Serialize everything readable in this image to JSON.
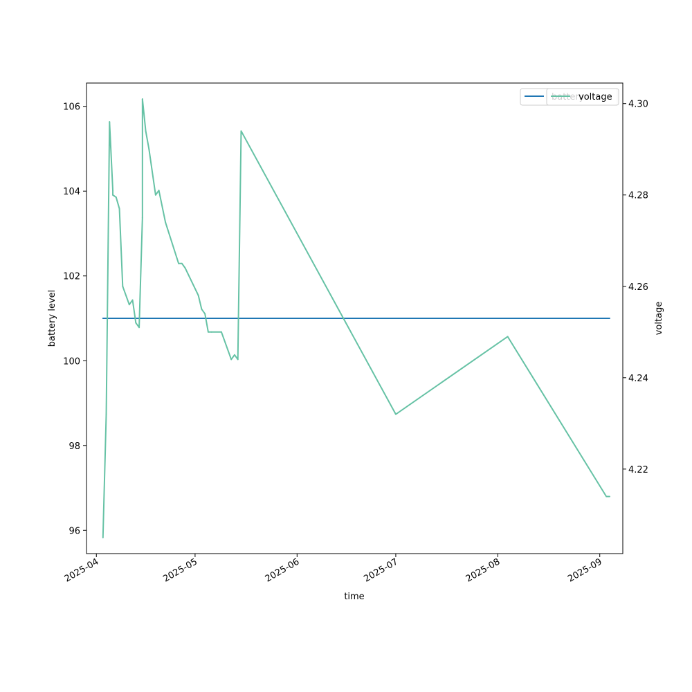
{
  "chart_data": {
    "type": "line",
    "xlabel": "time",
    "ylabel_left": "battery level",
    "ylabel_right": "voltage",
    "x_ticks": [
      "2025-04",
      "2025-05",
      "2025-06",
      "2025-07",
      "2025-08",
      "2025-09"
    ],
    "y_left_ticks": [
      "96",
      "98",
      "100",
      "102",
      "104",
      "106"
    ],
    "y_right_ticks": [
      "4.22",
      "4.24",
      "4.26",
      "4.28",
      "4.30"
    ],
    "xlim": [
      "2025-03-29",
      "2025-09-08"
    ],
    "ylim_left": [
      95.45,
      106.55
    ],
    "ylim_right": [
      4.2015,
      4.3045
    ],
    "legend_placement": "top-right",
    "grid": false,
    "series": [
      {
        "name": "battery",
        "axis": "left",
        "color": "#1f77b4",
        "points": [
          [
            "2025-04-03",
            101.0
          ],
          [
            "2025-09-04",
            101.0
          ]
        ]
      },
      {
        "name": "voltage",
        "axis": "right",
        "color": "#66c2a5",
        "points": [
          [
            "2025-04-03",
            4.205
          ],
          [
            "2025-04-04",
            4.232
          ],
          [
            "2025-04-05",
            4.296
          ],
          [
            "2025-04-06",
            4.281
          ],
          [
            "2025-04-06",
            4.28
          ],
          [
            "2025-04-07",
            4.2795
          ],
          [
            "2025-04-08",
            4.277
          ],
          [
            "2025-04-09",
            4.26
          ],
          [
            "2025-04-11",
            4.256
          ],
          [
            "2025-04-12",
            4.257
          ],
          [
            "2025-04-13",
            4.252
          ],
          [
            "2025-04-14",
            4.251
          ],
          [
            "2025-04-15",
            4.275
          ],
          [
            "2025-04-15",
            4.301
          ],
          [
            "2025-04-16",
            4.294
          ],
          [
            "2025-04-17",
            4.29
          ],
          [
            "2025-04-19",
            4.28
          ],
          [
            "2025-04-20",
            4.281
          ],
          [
            "2025-04-22",
            4.274
          ],
          [
            "2025-04-26",
            4.265
          ],
          [
            "2025-04-27",
            4.265
          ],
          [
            "2025-04-28",
            4.264
          ],
          [
            "2025-05-02",
            4.258
          ],
          [
            "2025-05-03",
            4.255
          ],
          [
            "2025-05-04",
            4.254
          ],
          [
            "2025-05-05",
            4.25
          ],
          [
            "2025-05-06",
            4.25
          ],
          [
            "2025-05-09",
            4.25
          ],
          [
            "2025-05-12",
            4.244
          ],
          [
            "2025-05-13",
            4.245
          ],
          [
            "2025-05-14",
            4.244
          ],
          [
            "2025-05-15",
            4.294
          ],
          [
            "2025-07-01",
            4.232
          ],
          [
            "2025-08-04",
            4.249
          ],
          [
            "2025-09-03",
            4.214
          ],
          [
            "2025-09-04",
            4.214
          ]
        ]
      }
    ]
  }
}
